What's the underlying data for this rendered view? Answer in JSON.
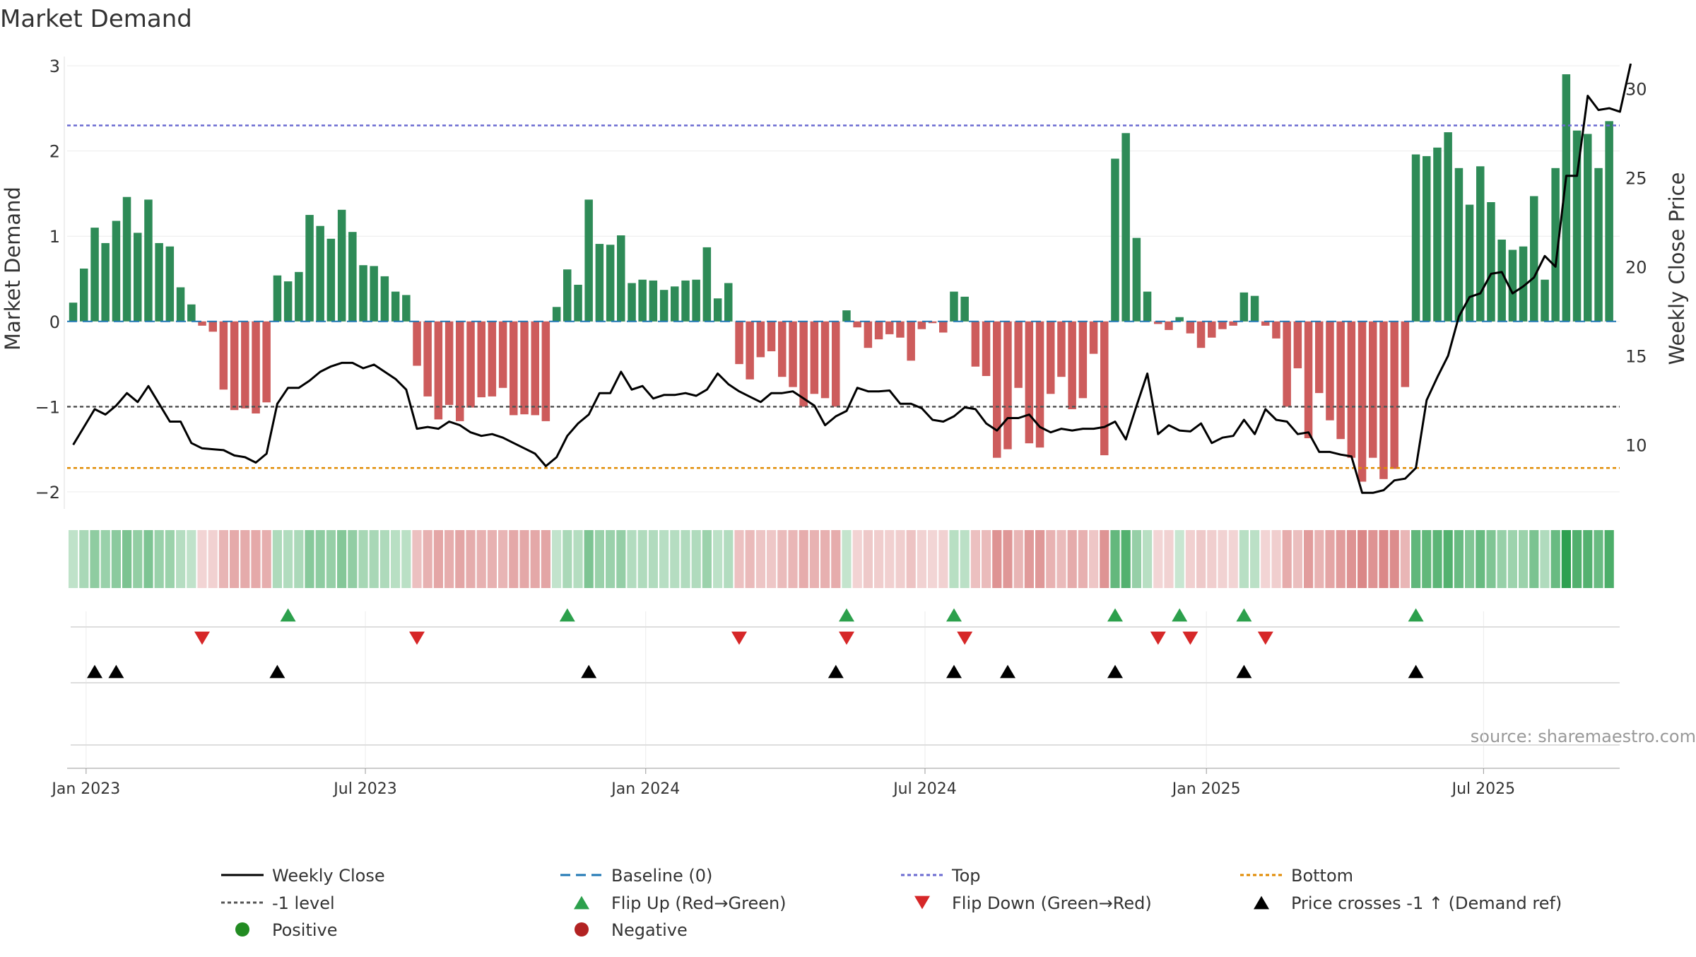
{
  "chart_data": {
    "type": "bar",
    "title": "Market Demand",
    "ylabel": "Market Demand",
    "y2label": "Weekly Close Price",
    "ylim": [
      -2.2,
      3.15
    ],
    "y2lim": [
      6.4,
      32.0
    ],
    "yticks": [
      3,
      2,
      1,
      0,
      -1,
      -2
    ],
    "yticklabels": [
      "3",
      "2",
      "1",
      "0",
      "−1",
      "−2"
    ],
    "y2ticks": [
      30,
      25,
      20,
      15,
      10
    ],
    "y2ticklabels": [
      "30",
      "25",
      "20",
      "15",
      "10"
    ],
    "xticks": [
      "Jan 2023",
      "Jul 2023",
      "Jan 2024",
      "Jul 2024",
      "Jan 2025",
      "Jul 2025"
    ],
    "xtick_weeks": [
      1.2,
      27.2,
      53.3,
      79.3,
      105.5,
      131.3
    ],
    "source": "source: sharemaestro.com",
    "levels": {
      "top": 2.3,
      "bottom": -1.72,
      "minus_one": -1.0,
      "baseline": 0
    },
    "colors": {
      "positive_bar": "#2e8b57",
      "negative_bar": "#cd5c5c",
      "price_line": "#000000",
      "baseline": "#1f77b4",
      "top": "#6a6ad0",
      "bottom": "#e08a00",
      "minus_one": "#555555",
      "flip_up": "#2ca04c",
      "flip_down": "#d62728",
      "cross": "#000000"
    },
    "series": [
      {
        "name": "Market Demand",
        "values": [
          0.22,
          0.62,
          1.1,
          0.92,
          1.18,
          1.46,
          1.04,
          1.43,
          0.92,
          0.88,
          0.4,
          0.2,
          -0.05,
          -0.12,
          -0.8,
          -1.04,
          -1.02,
          -1.08,
          -0.95,
          0.54,
          0.47,
          0.58,
          1.25,
          1.12,
          0.97,
          1.31,
          1.05,
          0.66,
          0.65,
          0.53,
          0.35,
          0.31,
          -0.52,
          -0.88,
          -1.15,
          -0.98,
          -1.17,
          -1.01,
          -0.89,
          -0.88,
          -0.78,
          -1.1,
          -1.09,
          -1.1,
          -1.17,
          0.17,
          0.61,
          0.43,
          1.43,
          0.91,
          0.9,
          1.01,
          0.45,
          0.49,
          0.48,
          0.37,
          0.41,
          0.48,
          0.49,
          0.87,
          0.27,
          0.45,
          -0.5,
          -0.68,
          -0.42,
          -0.35,
          -0.65,
          -0.77,
          -1.0,
          -0.85,
          -0.9,
          -1.0,
          0.13,
          -0.07,
          -0.31,
          -0.21,
          -0.15,
          -0.19,
          -0.46,
          -0.09,
          -0.02,
          -0.13,
          0.35,
          0.29,
          -0.53,
          -0.64,
          -1.6,
          -1.5,
          -0.78,
          -1.43,
          -1.48,
          -0.85,
          -0.65,
          -1.03,
          -0.9,
          -0.38,
          -1.57,
          1.91,
          2.21,
          0.98,
          0.35,
          -0.03,
          -0.1,
          0.05,
          -0.14,
          -0.31,
          -0.19,
          -0.09,
          -0.05,
          0.34,
          0.3,
          -0.05,
          -0.2,
          -1.0,
          -0.55,
          -1.37,
          -0.84,
          -1.16,
          -1.38,
          -1.6,
          -1.88,
          -1.6,
          -1.85,
          -1.73,
          -0.77,
          1.96,
          1.94,
          2.04,
          2.22,
          1.8,
          1.37,
          1.82,
          1.4,
          0.96,
          0.84,
          0.88,
          1.47,
          0.49,
          1.8,
          2.9,
          2.24,
          2.2,
          1.8,
          2.35
        ]
      },
      {
        "name": "Weekly Close",
        "axis": "y2",
        "values": [
          10.0,
          11.0,
          12.0,
          11.7,
          12.2,
          12.9,
          12.4,
          13.3,
          12.3,
          11.3,
          11.3,
          10.1,
          9.8,
          9.75,
          9.7,
          9.4,
          9.3,
          9.0,
          9.5,
          12.3,
          13.2,
          13.2,
          13.6,
          14.1,
          14.4,
          14.6,
          14.6,
          14.3,
          14.5,
          14.1,
          13.7,
          13.1,
          10.9,
          11.0,
          10.9,
          11.3,
          11.1,
          10.7,
          10.5,
          10.6,
          10.4,
          10.1,
          9.8,
          9.5,
          8.8,
          9.3,
          10.5,
          11.2,
          11.7,
          12.9,
          12.9,
          14.1,
          13.1,
          13.3,
          12.6,
          12.8,
          12.8,
          12.9,
          12.75,
          13.1,
          14.0,
          13.4,
          13.0,
          12.7,
          12.4,
          12.9,
          12.9,
          13.0,
          12.6,
          12.2,
          11.1,
          11.6,
          11.9,
          13.2,
          13.0,
          13.0,
          13.05,
          12.3,
          12.3,
          12.05,
          11.4,
          11.3,
          11.6,
          12.1,
          12.0,
          11.2,
          10.8,
          11.5,
          11.5,
          11.7,
          11.0,
          10.7,
          10.9,
          10.8,
          10.9,
          10.9,
          11.0,
          11.3,
          10.3,
          12.2,
          14.0,
          10.6,
          11.1,
          10.8,
          10.75,
          11.2,
          10.1,
          10.4,
          10.5,
          11.4,
          10.6,
          12.0,
          11.4,
          11.3,
          10.6,
          10.7,
          9.6,
          9.6,
          9.45,
          9.35,
          7.3,
          7.3,
          7.45,
          8.0,
          8.1,
          8.7,
          12.5,
          13.8,
          15.0,
          17.2,
          18.3,
          18.5,
          19.6,
          19.7,
          18.5,
          18.9,
          19.4,
          20.6,
          20.0,
          25.1,
          25.1,
          29.6,
          28.8,
          28.9,
          28.7,
          31.4
        ]
      }
    ],
    "heatmap_strip": {
      "name": "Demand strength strip",
      "values_ref": "Market Demand"
    },
    "flip_up_weeks": [
      20,
      46,
      72,
      82,
      97,
      103,
      109,
      125
    ],
    "flip_down_weeks": [
      12,
      32,
      62,
      72,
      83,
      101,
      104,
      111
    ],
    "cross_weeks": [
      2,
      4,
      19,
      48,
      71,
      82,
      87,
      97,
      109,
      125
    ],
    "legend": {
      "placement": "bottom",
      "entries": [
        {
          "label": "Weekly Close",
          "marker": "line-solid",
          "color": "#000000"
        },
        {
          "label": "Baseline (0)",
          "marker": "line-dashed",
          "color": "#1f77b4"
        },
        {
          "label": "Top",
          "marker": "line-dotted",
          "color": "#6a6ad0"
        },
        {
          "label": "Bottom",
          "marker": "line-dotted",
          "color": "#e08a00"
        },
        {
          "label": "-1 level",
          "marker": "line-dotted",
          "color": "#555555"
        },
        {
          "label": "Flip Up (Red→Green)",
          "marker": "triangle-up",
          "color": "#2ca04c"
        },
        {
          "label": "Flip Down (Green→Red)",
          "marker": "triangle-down",
          "color": "#d62728"
        },
        {
          "label": "Price crosses -1 ↑ (Demand ref)",
          "marker": "triangle-up",
          "color": "#000000"
        },
        {
          "label": "Positive",
          "marker": "circle",
          "color": "#228b22"
        },
        {
          "label": "Negative",
          "marker": "circle",
          "color": "#b22222"
        }
      ]
    }
  }
}
